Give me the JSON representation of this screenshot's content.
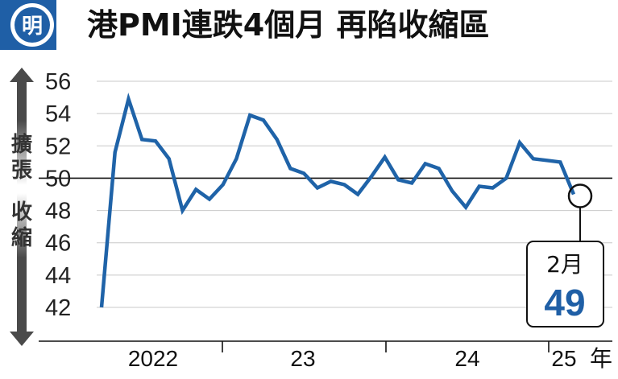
{
  "header": {
    "badge": "明",
    "title": "港PMI連跌4個月 再陷收縮區"
  },
  "colors": {
    "line": "#1f63a8",
    "badge_fill": "#1f5fa6",
    "gridline": "#c8c8c8",
    "baseline": "#111111",
    "arrow_dark": "#555555"
  },
  "side_labels": {
    "expansion": [
      "擴",
      "張"
    ],
    "contraction": [
      "收",
      "縮"
    ]
  },
  "callout": {
    "month": "2月",
    "value": "49"
  },
  "chart_data": {
    "type": "line",
    "title": "港PMI連跌4個月 再陷收縮區",
    "xlabel": "年",
    "ylabel": "",
    "ylim": [
      41,
      57
    ],
    "yticks": [
      42,
      44,
      46,
      48,
      50,
      52,
      54,
      56
    ],
    "reference_line": 50,
    "x_period_labels": [
      "2022",
      "23",
      "24",
      "25"
    ],
    "x_unit": "年",
    "grid": true,
    "series": [
      {
        "values": [
          42.0,
          51.6,
          54.9,
          52.4,
          52.3,
          51.2,
          48.0,
          49.3,
          48.7,
          49.6,
          51.2,
          53.9,
          53.6,
          52.4,
          50.6,
          50.3,
          49.4,
          49.8,
          49.6,
          49.0,
          50.1,
          51.3,
          49.9,
          49.7,
          50.9,
          50.6,
          49.2,
          48.2,
          49.5,
          49.4,
          50.0,
          52.2,
          51.2,
          51.1,
          51.0,
          49.0
        ]
      }
    ]
  }
}
